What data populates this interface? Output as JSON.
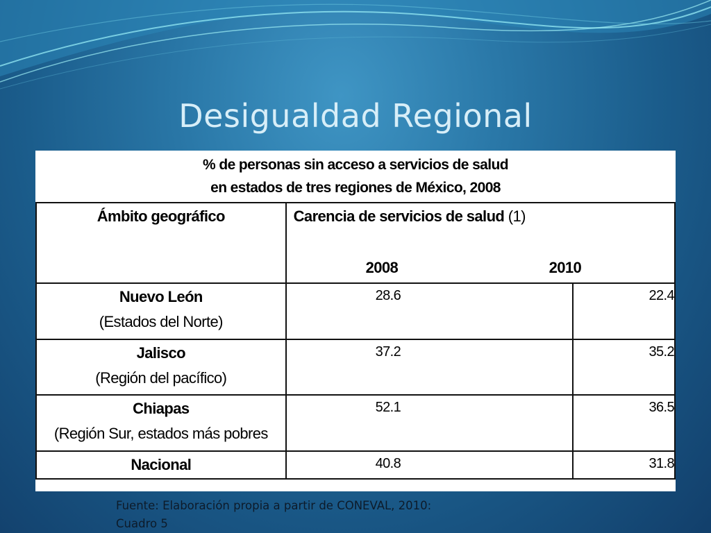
{
  "slide": {
    "title": "Desigualdad Regional"
  },
  "table": {
    "caption_line1": "% de personas sin acceso a servicios de salud",
    "caption_line2": "en estados de tres regiones de México, 2008",
    "header_geo": "Ámbito geográfico",
    "header_carencia": "Carencia de servicios de salud",
    "header_carencia_note": " (1)",
    "year_2008": "2008",
    "year_2010": "2010",
    "rows": [
      {
        "name": "Nuevo León",
        "region": "(Estados del Norte)",
        "v2008": "28.6",
        "v2010": "22.4"
      },
      {
        "name": "Jalisco",
        "region": "(Región del pacífico)",
        "v2008": "37.2",
        "v2010": "35.2"
      },
      {
        "name": "Chiapas",
        "region": "(Región Sur, estados más pobres",
        "v2008": "52.1",
        "v2010": "36.5"
      },
      {
        "name": "Nacional",
        "region": "",
        "v2008": "40.8",
        "v2010": "31.8"
      }
    ]
  },
  "source": {
    "line1": "Fuente: Elaboración propia a partir de CONEVAL, 2010:",
    "line2": "Cuadro 5"
  },
  "colors": {
    "background_top": "#3f95c4",
    "background_bottom": "#123f6b",
    "title": "#d7eef8",
    "table_bg": "#ffffff"
  }
}
